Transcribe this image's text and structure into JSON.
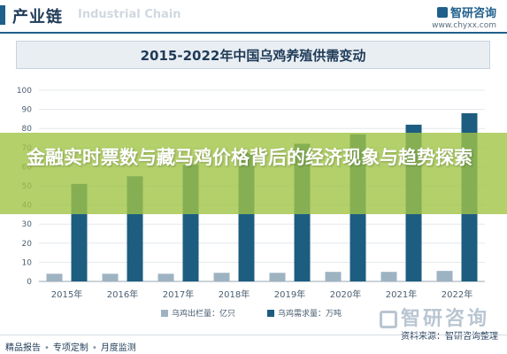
{
  "header": {
    "title": "产业链",
    "watermark": "Industrial Chain",
    "brand_name": "智研咨询",
    "brand_url": "www.chyxx.com"
  },
  "overlay": {
    "text": "金融实时票数与藏马鸡价格背后的经济现象与趋势探索"
  },
  "footer": {
    "items": [
      "精品报告",
      "专项定制",
      "月度监测"
    ],
    "source": "资料来源：智研咨询整理",
    "watermark": "智研咨询"
  },
  "colors": {
    "supply": "#9eb3c2",
    "demand": "#1d5d80",
    "overlay": "#a0c446"
  },
  "chart_data": {
    "type": "bar",
    "title": "2015-2022年中国乌鸡养殖供需变动",
    "categories": [
      "2015年",
      "2016年",
      "2017年",
      "2018年",
      "2019年",
      "2020年",
      "2021年",
      "2022年"
    ],
    "series": [
      {
        "name": "乌鸡出栏量：亿只",
        "values": [
          4,
          4,
          4,
          4.5,
          4.5,
          5,
          5,
          5.5
        ]
      },
      {
        "name": "乌鸡需求量：万吨",
        "values": [
          51,
          55,
          61,
          67,
          72,
          77,
          82,
          88
        ]
      }
    ],
    "ylim": [
      0,
      100
    ],
    "yticks": [
      0,
      10,
      20,
      30,
      40,
      50,
      60,
      70,
      80,
      90,
      100
    ],
    "grid": true,
    "legend": "bottom"
  }
}
